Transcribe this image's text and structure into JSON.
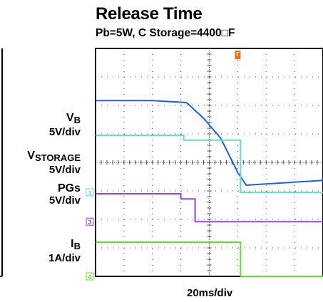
{
  "title": "Release Time",
  "subtitle": "Pb=5W, C Storage=4400□F",
  "timebase": "20ms/div",
  "trigger_marker": "T",
  "channels": [
    {
      "name_main": "V",
      "name_sub": "B",
      "scale": "5V/div"
    },
    {
      "name_main": "V",
      "name_sub": "STORAGE",
      "scale": "5V/div",
      "marker": "1"
    },
    {
      "name_main": "PGs",
      "name_sub": "",
      "scale": "5V/div",
      "marker": "3"
    },
    {
      "name_main": "I",
      "name_sub": "B",
      "scale": "1A/div",
      "marker": "4"
    }
  ],
  "colors": {
    "vb": "#1f5fe0",
    "vstorage": "#5fe0c8",
    "pgs": "#9b40e0",
    "ib": "#5fe02a",
    "trigger": "#f07020",
    "grid": "#555555"
  },
  "chart_data": {
    "type": "line",
    "title": "Release Time",
    "subtitle": "Pb=5W, C Storage=4400□F",
    "x_units": "divisions",
    "x_range": [
      0,
      8
    ],
    "y_units": "divisions",
    "y_range": [
      0,
      8
    ],
    "grid": true,
    "series": [
      {
        "name": "VB",
        "key": "vb",
        "x": [
          0,
          1.0,
          2.0,
          3.2,
          3.8,
          4.4,
          5.0,
          5.3,
          8
        ],
        "y": [
          6.17,
          6.17,
          6.17,
          6.1,
          5.55,
          4.85,
          3.65,
          3.2,
          3.37
        ]
      },
      {
        "name": "VSTORAGE",
        "key": "vstorage",
        "x": [
          0,
          3.1,
          3.1,
          5.1,
          5.1,
          8
        ],
        "y": [
          4.95,
          4.95,
          4.78,
          4.78,
          2.95,
          2.95
        ]
      },
      {
        "name": "PGs",
        "key": "pgs",
        "x": [
          0,
          3.0,
          3.0,
          3.5,
          3.5,
          8
        ],
        "y": [
          2.9,
          2.9,
          2.72,
          2.72,
          1.92,
          1.92
        ]
      },
      {
        "name": "IB",
        "key": "ib",
        "x": [
          0,
          5.1,
          5.1,
          8
        ],
        "y": [
          1.2,
          1.2,
          0.0,
          0.0
        ]
      }
    ]
  }
}
